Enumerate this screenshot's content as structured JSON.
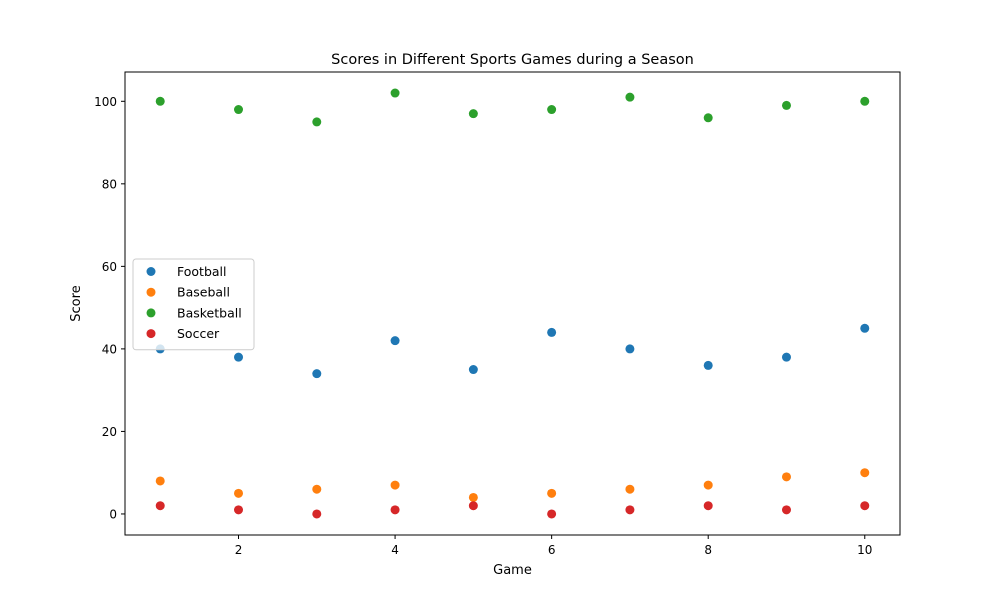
{
  "chart_data": {
    "type": "scatter",
    "title": "Scores in Different Sports Games during a Season",
    "xlabel": "Game",
    "ylabel": "Score",
    "x": [
      1,
      2,
      3,
      4,
      5,
      6,
      7,
      8,
      9,
      10
    ],
    "xlim": [
      0.55,
      10.45
    ],
    "ylim": [
      -5.1,
      107.1
    ],
    "xticks": [
      2,
      4,
      6,
      8,
      10
    ],
    "yticks": [
      0,
      20,
      40,
      60,
      80,
      100
    ],
    "grid": false,
    "legend_position": "center-left",
    "series": [
      {
        "name": "Football",
        "color": "#1f77b4",
        "values": [
          40,
          38,
          34,
          42,
          35,
          44,
          40,
          36,
          38,
          45
        ]
      },
      {
        "name": "Baseball",
        "color": "#ff7f0e",
        "values": [
          8,
          5,
          6,
          7,
          4,
          5,
          6,
          7,
          9,
          10
        ]
      },
      {
        "name": "Basketball",
        "color": "#2ca02c",
        "values": [
          100,
          98,
          95,
          102,
          97,
          98,
          101,
          96,
          99,
          100
        ]
      },
      {
        "name": "Soccer",
        "color": "#d62728",
        "values": [
          2,
          1,
          0,
          1,
          2,
          0,
          1,
          2,
          1,
          2
        ]
      }
    ]
  }
}
